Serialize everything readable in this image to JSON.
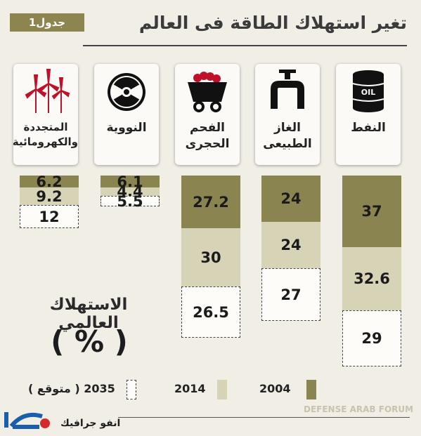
{
  "header": {
    "title": "تغير استهلاك الطاقة فى العالم",
    "badge": "جدول1"
  },
  "chart_data": {
    "type": "table",
    "unit": "%",
    "title": "الاستهلاك العالمي",
    "columns": [
      {
        "key": "oil",
        "label_lines": [
          "النفط"
        ],
        "icon": "oil-barrel-icon",
        "values": {
          "2004": 37,
          "2014": 32.6,
          "2035": 29
        }
      },
      {
        "key": "gas",
        "label_lines": [
          "الغاز",
          "الطبيعى"
        ],
        "icon": "gas-pipe-icon",
        "values": {
          "2004": 24,
          "2014": 24,
          "2035": 27
        }
      },
      {
        "key": "coal",
        "label_lines": [
          "الفحم",
          "الحجرى"
        ],
        "icon": "coal-cart-icon",
        "values": {
          "2004": 27.2,
          "2014": 30,
          "2035": 26.5
        }
      },
      {
        "key": "nuclear",
        "label_lines": [
          "النووية"
        ],
        "icon": "radiation-icon",
        "values": {
          "2004": 6.1,
          "2014": 4.4,
          "2035": 5.5
        }
      },
      {
        "key": "renewable",
        "label_lines": [
          "المتجددة",
          "والكهرومائية"
        ],
        "icon": "wind-turbine-icon",
        "values": {
          "2004": 6.2,
          "2014": 9.2,
          "2035": 12
        }
      }
    ],
    "legend": [
      {
        "year": "2004",
        "label": "2004",
        "color": "#8a8550"
      },
      {
        "year": "2014",
        "label": "2014",
        "color": "#d7d3b7"
      },
      {
        "year": "2035",
        "label": "2035 ( متوقع )",
        "color": "#fdfcf8"
      }
    ]
  },
  "global": {
    "label": "الاستهلاك العالمي",
    "percent": "( % )"
  },
  "icon_texts": {
    "oil": "OIL"
  },
  "footer": {
    "source": "انفو جرافيك",
    "logo_text": "اليوم",
    "watermark": "DEFENSE ARAB FORUM"
  }
}
